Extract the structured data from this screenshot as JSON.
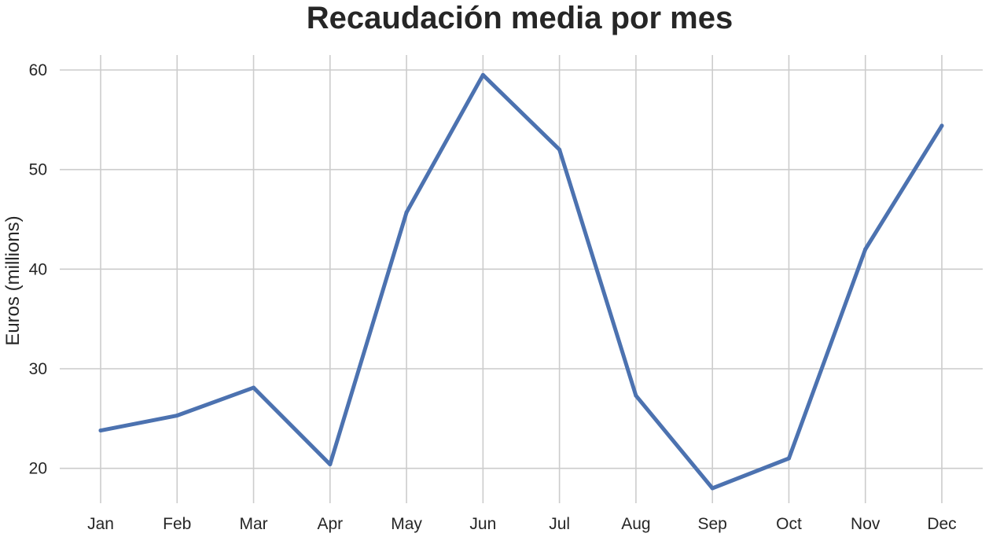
{
  "chart_data": {
    "type": "line",
    "title": "Recaudación media por mes",
    "xlabel": "",
    "ylabel": "Euros (millions)",
    "categories": [
      "Jan",
      "Feb",
      "Mar",
      "Apr",
      "May",
      "Jun",
      "Jul",
      "Aug",
      "Sep",
      "Oct",
      "Nov",
      "Dec"
    ],
    "series": [
      {
        "values": [
          23.8,
          25.3,
          28.1,
          20.4,
          45.7,
          59.5,
          52.0,
          27.3,
          18.0,
          21.0,
          42.0,
          54.4
        ],
        "color": "#4c72b0"
      }
    ],
    "yticks": [
      20,
      30,
      40,
      50,
      60
    ],
    "ylim": [
      16.5,
      61.5
    ],
    "grid": true,
    "legend": "none"
  },
  "colors": {
    "grid": "#cccccc",
    "text": "#262626",
    "background": "#ffffff"
  }
}
